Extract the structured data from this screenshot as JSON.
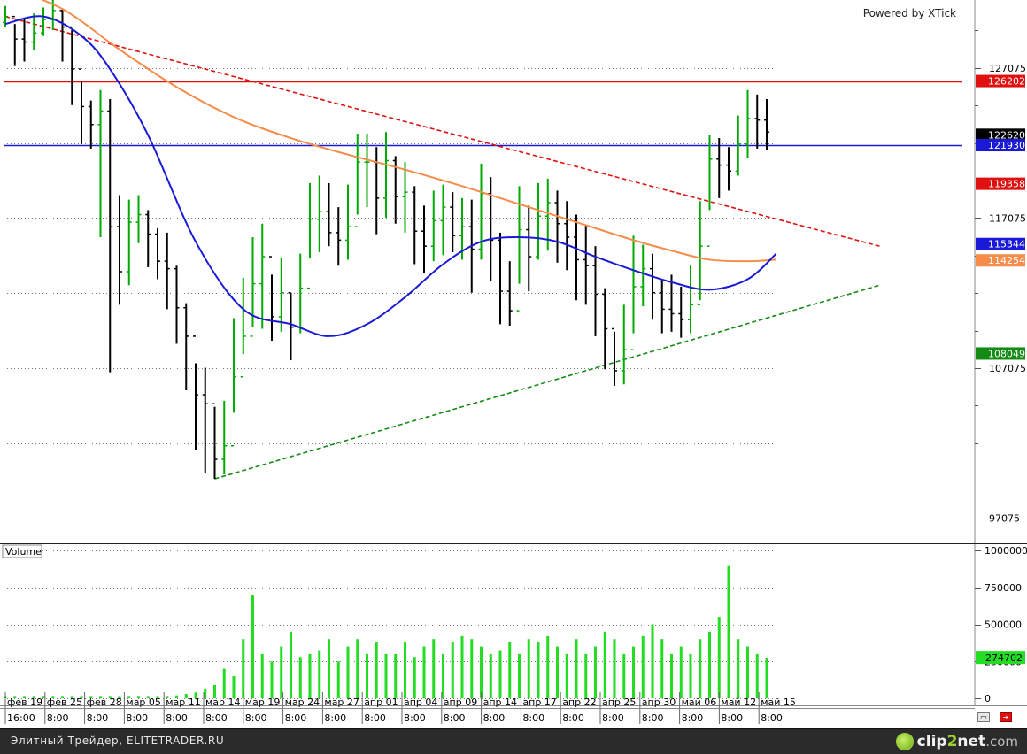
{
  "watermark": "Powered by XTick",
  "volume_label": "Volume",
  "status_bar": {
    "text": "Элитный Трейдер, ELITETRADER.RU",
    "brand_a": "clip",
    "brand_b": "2",
    "brand_c": "net",
    "brand_d": ".com"
  },
  "colors": {
    "up": "#00aa00",
    "down": "#000000",
    "ma_blue": "#1a1ad6",
    "ma_orange": "#f58c4a",
    "resistance": "#e01010",
    "support": "#1a1ad6",
    "down_trend": "#e01010",
    "up_trend": "#138a13",
    "volume": "#22dd22"
  },
  "chart_data": [
    {
      "type": "candlestick",
      "price_axis": {
        "ticks": [
          "127075",
          "117075",
          "107075",
          "97075"
        ],
        "range": [
          95400,
          131600
        ]
      },
      "time_labels": [
        "фев 19",
        "фев 25",
        "фев 28",
        "мар 05",
        "мар 11",
        "мар 14",
        "мар 19",
        "мар 24",
        "мар 27",
        "апр 01",
        "апр 04",
        "апр 09",
        "апр 14",
        "апр 17",
        "апр 22",
        "апр 25",
        "апр 30",
        "май 06",
        "май 12",
        "май 15"
      ],
      "hour_labels": [
        "16:00",
        "8:00",
        "8:00",
        "8:00",
        "8:00",
        "8:00",
        "8:00",
        "8:00",
        "8:00",
        "8:00",
        "8:00",
        "8:00",
        "8:00",
        "8:00",
        "8:00",
        "8:00",
        "8:00",
        "8:00",
        "8:00",
        "8:00"
      ],
      "bars_close": [
        130500,
        129000,
        128800,
        129400,
        130300,
        130900,
        129800,
        127000,
        124500,
        123300,
        124200,
        116500,
        113500,
        116800,
        117300,
        116000,
        114200,
        113700,
        111100,
        109200,
        105300,
        104700,
        101000,
        101900,
        106500,
        109200,
        112700,
        114500,
        110500,
        112100,
        109800,
        112400,
        117000,
        117500,
        116100,
        115600,
        116500,
        120800,
        120800,
        118400,
        120900,
        118500,
        118800,
        116200,
        115200,
        116900,
        117800,
        115900,
        116500,
        115000,
        118700,
        115600,
        112200,
        110900,
        116300,
        114500,
        117200,
        118100,
        116700,
        115800,
        114300,
        113900,
        112000,
        109700,
        106900,
        108300,
        112500,
        113700,
        112100,
        111000,
        110700,
        110300,
        111300,
        115200,
        121000,
        120600,
        120200,
        122000,
        123700,
        123600,
        122800
      ],
      "bars_high": [
        131200,
        130000,
        130400,
        130700,
        131100,
        131600,
        131000,
        129600,
        126200,
        124900,
        125600,
        125000,
        118600,
        118300,
        118600,
        117600,
        116400,
        116100,
        113900,
        111400,
        107400,
        107100,
        104500,
        104900,
        110400,
        113100,
        115800,
        116700,
        113300,
        114400,
        112100,
        114700,
        119400,
        119900,
        119400,
        117800,
        119300,
        122700,
        122700,
        121800,
        122800,
        121200,
        120800,
        119200,
        117900,
        118900,
        119300,
        118800,
        118400,
        118300,
        120700,
        119800,
        116100,
        114200,
        119200,
        117900,
        119400,
        119700,
        118900,
        118200,
        117300,
        116600,
        115200,
        112400,
        109500,
        111300,
        115900,
        115300,
        114700,
        113000,
        113300,
        112500,
        113900,
        118200,
        122600,
        122400,
        121800,
        123900,
        125600,
        125300,
        125000
      ],
      "bars_low": [
        129800,
        127200,
        127500,
        128300,
        129200,
        129600,
        127500,
        124600,
        122000,
        121700,
        115800,
        106800,
        111300,
        112600,
        115400,
        113800,
        113000,
        111000,
        108700,
        105600,
        101600,
        100100,
        99700,
        100000,
        104100,
        108000,
        109800,
        109700,
        108900,
        109500,
        107600,
        109400,
        114400,
        114800,
        115200,
        113900,
        114300,
        117300,
        117800,
        116000,
        117100,
        116700,
        116100,
        114000,
        113400,
        114200,
        114600,
        114800,
        114300,
        112100,
        114300,
        112900,
        110000,
        109900,
        112700,
        112200,
        114300,
        114900,
        114100,
        113600,
        111600,
        111300,
        109200,
        107000,
        105900,
        106000,
        109400,
        111200,
        110300,
        109400,
        109500,
        109100,
        109400,
        111600,
        117600,
        118400,
        118900,
        119900,
        121100,
        121700,
        121600
      ],
      "ma_blue_anchors": [
        [
          0,
          130000
        ],
        [
          4,
          130500
        ],
        [
          8,
          129200
        ],
        [
          11,
          127000
        ],
        [
          15,
          122600
        ],
        [
          20,
          115500
        ],
        [
          25,
          111000
        ],
        [
          30,
          110000
        ],
        [
          34,
          109200
        ],
        [
          38,
          110000
        ],
        [
          42,
          111800
        ],
        [
          46,
          114000
        ],
        [
          50,
          115500
        ],
        [
          54,
          115800
        ],
        [
          58,
          115500
        ],
        [
          62,
          114500
        ],
        [
          66,
          113600
        ],
        [
          70,
          112800
        ],
        [
          74,
          112300
        ],
        [
          78,
          113000
        ],
        [
          81,
          114700
        ]
      ],
      "ma_orange_anchors": [
        [
          0,
          132500
        ],
        [
          6,
          131000
        ],
        [
          12,
          128300
        ],
        [
          18,
          125800
        ],
        [
          24,
          123800
        ],
        [
          30,
          122400
        ],
        [
          36,
          121300
        ],
        [
          42,
          120300
        ],
        [
          48,
          119200
        ],
        [
          54,
          118000
        ],
        [
          60,
          116800
        ],
        [
          66,
          115600
        ],
        [
          70,
          114900
        ],
        [
          74,
          114300
        ],
        [
          78,
          114200
        ],
        [
          81,
          114300
        ]
      ],
      "horizontal_lines": [
        {
          "value": 126202,
          "label": "126202",
          "color": "#e01010"
        },
        {
          "value": 121930,
          "label": "121930",
          "color": "#1a1ad6"
        },
        {
          "value": 122620,
          "label": "122620",
          "color": "#9aa6c8"
        }
      ],
      "price_tags": [
        {
          "value": 126202,
          "label": "126202",
          "bg": "#e01010",
          "fg": "#ffffff"
        },
        {
          "value": 122620,
          "label": "122620",
          "bg": "#000000",
          "fg": "#ffffff"
        },
        {
          "value": 121930,
          "label": "121930",
          "bg": "#1a1ad6",
          "fg": "#ffffff"
        },
        {
          "value": 119358,
          "label": "119358",
          "bg": "#e01010",
          "fg": "#ffffff"
        },
        {
          "value": 115344,
          "label": "115344",
          "bg": "#1a1ad6",
          "fg": "#ffffff"
        },
        {
          "value": 114254,
          "label": "114254",
          "bg": "#f58c4a",
          "fg": "#ffffff"
        },
        {
          "value": 108049,
          "label": "108049",
          "bg": "#138a13",
          "fg": "#ffffff"
        }
      ],
      "trendlines": [
        {
          "name": "down",
          "from": [
            0,
            130500
          ],
          "to": [
            90,
            115200
          ],
          "color": "#e01010"
        },
        {
          "name": "up",
          "from": [
            22,
            99700
          ],
          "to": [
            90,
            112600
          ],
          "color": "#138a13"
        }
      ]
    },
    {
      "type": "bar",
      "name": "Volume",
      "axis_ticks": [
        "1000000",
        "750000",
        "500000",
        "250000",
        "0"
      ],
      "ylim": [
        0,
        1000000
      ],
      "last_value": 274702,
      "values": [
        10000,
        10000,
        10000,
        10000,
        10000,
        10000,
        10000,
        10000,
        10000,
        10000,
        10000,
        10000,
        10000,
        10000,
        10000,
        10000,
        10000,
        10000,
        20000,
        30000,
        40000,
        60000,
        90000,
        200000,
        150000,
        400000,
        700000,
        300000,
        250000,
        350000,
        450000,
        280000,
        300000,
        320000,
        400000,
        250000,
        350000,
        400000,
        300000,
        380000,
        300000,
        300000,
        380000,
        280000,
        350000,
        400000,
        300000,
        380000,
        420000,
        400000,
        350000,
        300000,
        320000,
        380000,
        300000,
        400000,
        380000,
        420000,
        350000,
        300000,
        400000,
        300000,
        350000,
        450000,
        400000,
        300000,
        350000,
        420000,
        500000,
        400000,
        300000,
        350000,
        300000,
        400000,
        450000,
        550000,
        900000,
        400000,
        350000,
        300000,
        274702
      ]
    }
  ]
}
